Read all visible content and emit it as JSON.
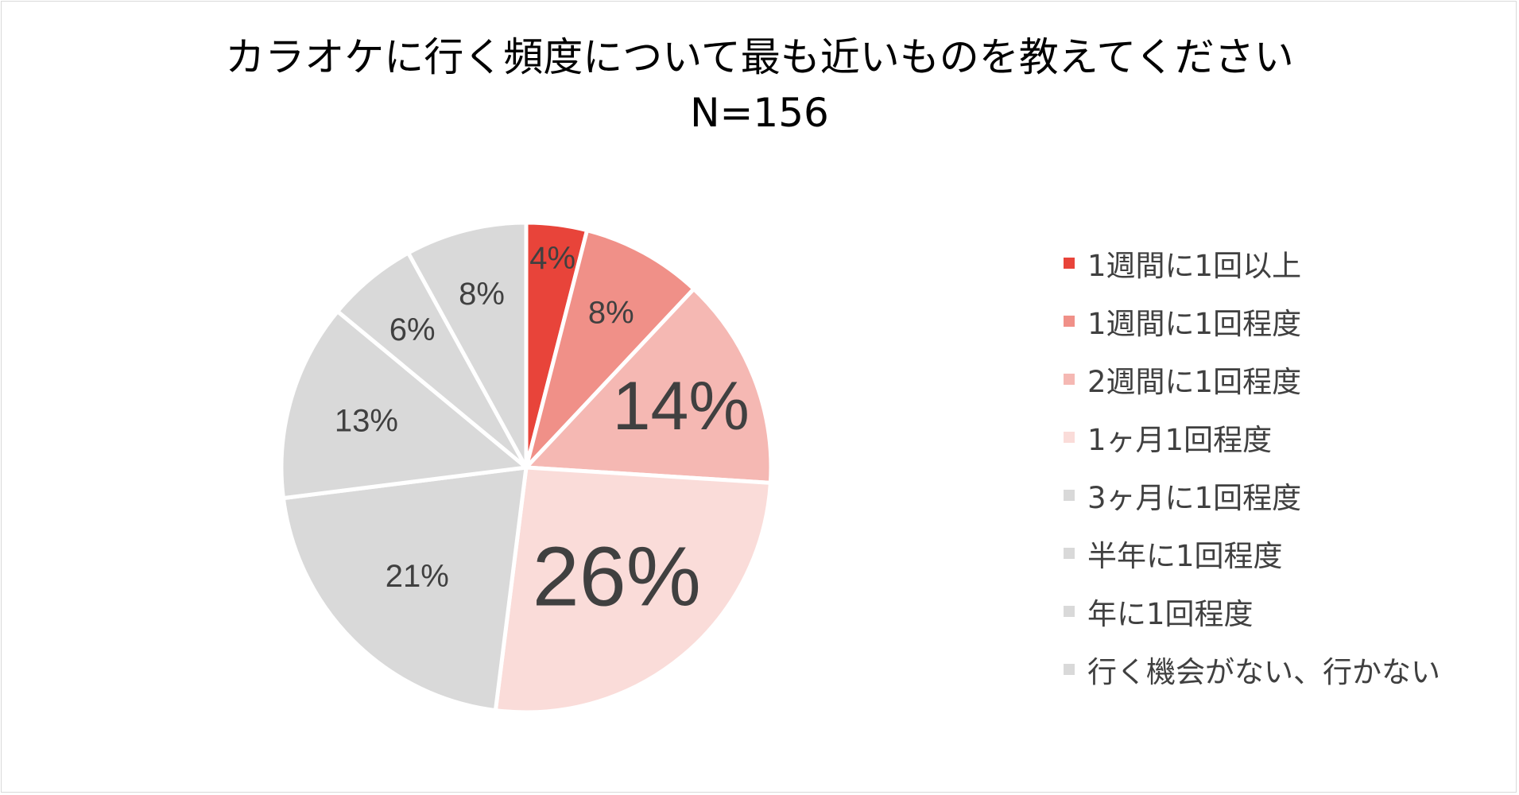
{
  "chart_data": {
    "type": "pie",
    "title": "カラオケに行く頻度について最も近いものを教えてください",
    "subtitle": "N=156",
    "legend_position": "right",
    "categories": [
      "1週間に1回以上",
      "1週間に1回程度",
      "2週間に1回程度",
      "1ヶ月1回程度",
      "3ヶ月に1回程度",
      "半年に1回程度",
      "年に1回程度",
      "行く機会がない、行かない"
    ],
    "values": [
      4,
      8,
      14,
      26,
      21,
      13,
      6,
      8
    ],
    "labels": [
      "4%",
      "8%",
      "14%",
      "26%",
      "21%",
      "13%",
      "6%",
      "8%"
    ],
    "colors": [
      "#e8443a",
      "#f09088",
      "#f5b8b3",
      "#fadcd9",
      "#d9d9d9",
      "#d9d9d9",
      "#d9d9d9",
      "#d9d9d9"
    ]
  }
}
